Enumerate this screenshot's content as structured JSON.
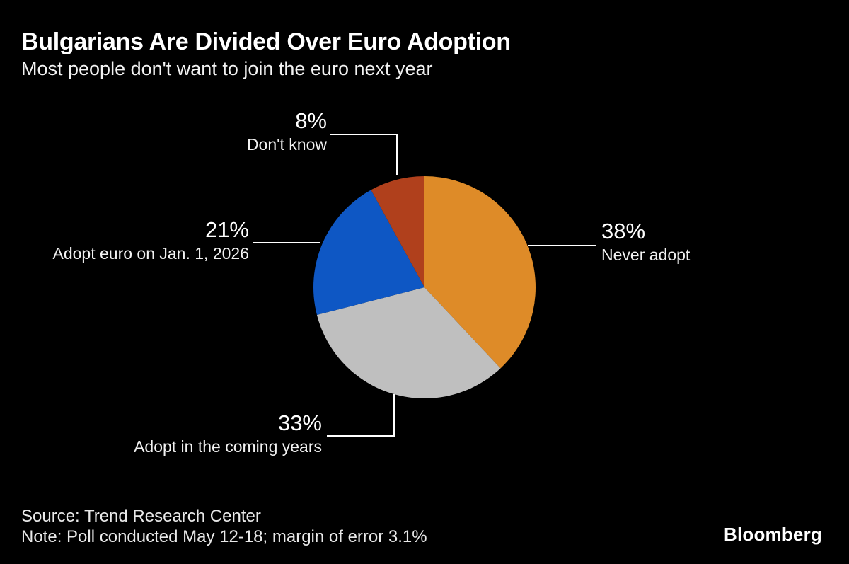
{
  "header": {
    "title": "Bulgarians Are Divided Over Euro Adoption",
    "subtitle": "Most people don't want to join the euro next year"
  },
  "chart_data": {
    "type": "pie",
    "title": "Bulgarians Are Divided Over Euro Adoption",
    "subtitle": "Most people don't want to join the euro next year",
    "unit": "%",
    "total": 100,
    "start_angle_deg": 0,
    "direction": "clockwise",
    "legend_position": "callout-labels",
    "slices": [
      {
        "label": "Never adopt",
        "value": 38,
        "display_value": "38%",
        "color": "#DE8B28"
      },
      {
        "label": "Adopt in the coming years",
        "value": 33,
        "display_value": "33%",
        "color": "#BFBFBF"
      },
      {
        "label": "Adopt euro on Jan. 1, 2026",
        "value": 21,
        "display_value": "21%",
        "color": "#0E57C4"
      },
      {
        "label": "Don't know",
        "value": 8,
        "display_value": "8%",
        "color": "#B0401C"
      }
    ],
    "source": "Source: Trend Research Center",
    "note": "Note: Poll conducted May 12-18; margin of error 3.1%"
  },
  "footer": {
    "source": "Source: Trend Research Center",
    "note": "Note: Poll conducted May 12-18; margin of error 3.1%",
    "logo": "Bloomberg"
  },
  "colors": {
    "background": "#000000",
    "leader_line": "#ffffff",
    "text_primary": "#ffffff",
    "text_secondary": "#e9e9e9"
  }
}
